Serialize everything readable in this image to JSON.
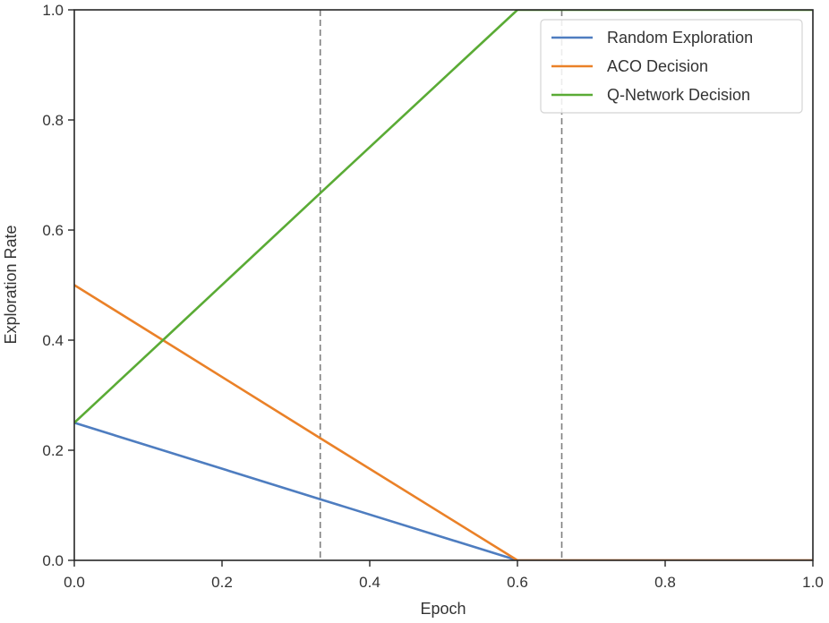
{
  "chart_data": {
    "type": "line",
    "title": "",
    "xlabel": "Epoch",
    "ylabel": "Exploration Rate",
    "xlim": [
      0.0,
      1.0
    ],
    "ylim": [
      0.0,
      1.0
    ],
    "grid": false,
    "legend_position": "upper right",
    "xticks": [
      "0.0",
      "0.2",
      "0.4",
      "0.6",
      "0.8",
      "1.0"
    ],
    "yticks": [
      "0.0",
      "0.2",
      "0.4",
      "0.6",
      "0.8",
      "1.0"
    ],
    "vertical_lines": [
      {
        "x": 0.333,
        "style": "dashed",
        "color": "#7f7f7f"
      },
      {
        "x": 0.66,
        "style": "dashed",
        "color": "#7f7f7f"
      }
    ],
    "series": [
      {
        "name": "Random Exploration",
        "color": "#4e7dc0",
        "x": [
          0.0,
          0.333,
          0.6,
          1.0
        ],
        "y": [
          0.25,
          0.111,
          0.0,
          0.0
        ]
      },
      {
        "name": "ACO Decision",
        "color": "#ea8128",
        "x": [
          0.0,
          0.12,
          0.333,
          0.6,
          1.0
        ],
        "y": [
          0.5,
          0.4,
          0.222,
          0.0,
          0.0
        ]
      },
      {
        "name": "Q-Network Decision",
        "color": "#5aab35",
        "x": [
          0.0,
          0.12,
          0.333,
          0.6,
          1.0
        ],
        "y": [
          0.25,
          0.4,
          0.667,
          1.0,
          1.0
        ]
      }
    ]
  }
}
